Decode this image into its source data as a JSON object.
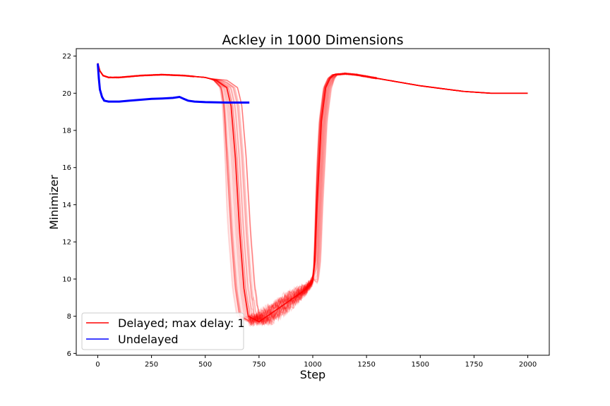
{
  "chart_data": {
    "type": "line",
    "title": "Ackley in 1000 Dimensions",
    "xlabel": "Step",
    "ylabel": "Minimizer",
    "xlim": [
      -100,
      2100
    ],
    "ylim": [
      5.9,
      22.4
    ],
    "xticks": [
      0,
      250,
      500,
      750,
      1000,
      1250,
      1500,
      1750,
      2000
    ],
    "yticks": [
      6,
      8,
      10,
      12,
      14,
      16,
      18,
      20,
      22
    ],
    "grid": false,
    "legend_position": "lower-left",
    "colors": {
      "delayed": "#ff0000",
      "undelayed": "#0000ff"
    },
    "series": [
      {
        "name": "Delayed; max delay: 1",
        "color": "#ff0000",
        "runs": 40,
        "x": [
          0,
          10,
          25,
          50,
          100,
          200,
          300,
          400,
          500,
          550,
          600,
          620,
          640,
          660,
          680,
          700,
          750,
          800,
          850,
          900,
          950,
          990,
          1000,
          1010,
          1020,
          1040,
          1060,
          1080,
          1100,
          1150,
          1200,
          1250,
          1300,
          1400,
          1500,
          1600,
          1700,
          1800,
          1830,
          1900,
          2000
        ],
        "y": [
          21.6,
          21.2,
          20.95,
          20.85,
          20.85,
          20.95,
          21.0,
          20.95,
          20.85,
          20.7,
          20.3,
          19.3,
          16.5,
          12.5,
          9.5,
          8.0,
          7.7,
          8.1,
          8.5,
          8.9,
          9.3,
          9.7,
          10.0,
          11.0,
          14.0,
          18.5,
          20.3,
          20.8,
          21.0,
          21.05,
          21.0,
          20.9,
          20.8,
          20.6,
          20.4,
          20.25,
          20.1,
          20.02,
          20.0,
          20.0,
          20.0
        ]
      },
      {
        "name": "Undelayed",
        "color": "#0000ff",
        "x": [
          0,
          5,
          10,
          20,
          30,
          50,
          100,
          150,
          200,
          250,
          300,
          350,
          380,
          400,
          420,
          450,
          500,
          600,
          705
        ],
        "y": [
          21.6,
          20.8,
          20.2,
          19.8,
          19.6,
          19.55,
          19.55,
          19.6,
          19.65,
          19.7,
          19.72,
          19.75,
          19.8,
          19.7,
          19.6,
          19.55,
          19.52,
          19.5,
          19.5
        ]
      }
    ]
  }
}
